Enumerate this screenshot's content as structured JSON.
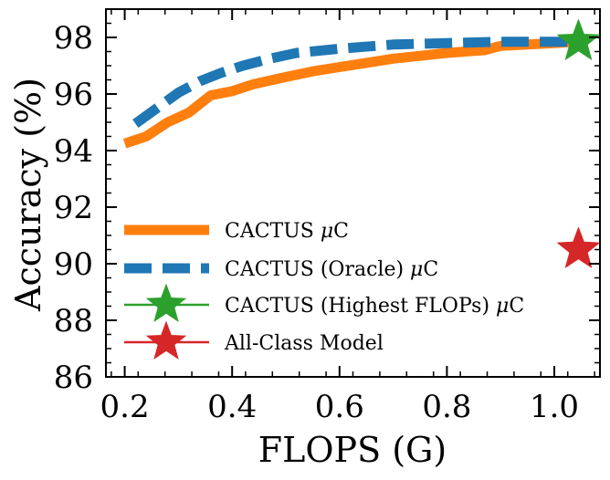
{
  "chart_data": {
    "type": "line",
    "title": "",
    "xlabel": "FLOPS (G)",
    "ylabel": "Accuracy (%)",
    "xlim": [
      0.165,
      1.085
    ],
    "ylim": [
      86,
      99
    ],
    "x_ticks": [
      0.2,
      0.4,
      0.6,
      0.8,
      1.0
    ],
    "x_tick_labels": [
      "0.2",
      "0.4",
      "0.6",
      "0.8",
      "1.0"
    ],
    "y_ticks": [
      86,
      88,
      90,
      92,
      94,
      96,
      98
    ],
    "y_tick_labels": [
      "86",
      "88",
      "90",
      "92",
      "94",
      "96",
      "98"
    ],
    "grid": false,
    "legend_position": "lower-left",
    "series": [
      {
        "name": "CACTUS μC",
        "style": "solid",
        "color": "#ff7f0e",
        "x": [
          0.2,
          0.24,
          0.28,
          0.32,
          0.36,
          0.4,
          0.44,
          0.5,
          0.55,
          0.6,
          0.65,
          0.7,
          0.75,
          0.8,
          0.87,
          0.9,
          1.0,
          1.04
        ],
        "y": [
          94.25,
          94.5,
          95.0,
          95.35,
          95.95,
          96.1,
          96.35,
          96.6,
          96.8,
          96.95,
          97.1,
          97.25,
          97.35,
          97.45,
          97.55,
          97.7,
          97.8,
          97.85
        ]
      },
      {
        "name": "CACTUS (Oracle) μC",
        "style": "dashed",
        "color": "#1f77b4",
        "x": [
          0.22,
          0.26,
          0.3,
          0.34,
          0.38,
          0.42,
          0.47,
          0.52,
          0.6,
          0.7,
          0.8,
          0.9,
          1.0,
          1.04
        ],
        "y": [
          94.95,
          95.5,
          96.05,
          96.45,
          96.75,
          97.0,
          97.25,
          97.45,
          97.6,
          97.75,
          97.8,
          97.85,
          97.85,
          97.85
        ]
      },
      {
        "name": "CACTUS (Highest FLOPs) μC",
        "style": "marker",
        "marker": "star",
        "color": "#2ca02c",
        "x": [
          1.045
        ],
        "y": [
          97.85
        ]
      },
      {
        "name": "All-Class Model",
        "style": "marker",
        "marker": "star",
        "color": "#d62728",
        "x": [
          1.045
        ],
        "y": [
          90.5
        ]
      }
    ],
    "legend": [
      {
        "name_prefix": "CACTUS ",
        "mu": "μ",
        "name_suffix": "C"
      },
      {
        "name_prefix": "CACTUS (Oracle) ",
        "mu": "μ",
        "name_suffix": "C"
      },
      {
        "name_prefix": "CACTUS (Highest FLOPs) ",
        "mu": "μ",
        "name_suffix": "C"
      },
      {
        "name_prefix": "All-Class Model",
        "mu": "",
        "name_suffix": ""
      }
    ]
  }
}
